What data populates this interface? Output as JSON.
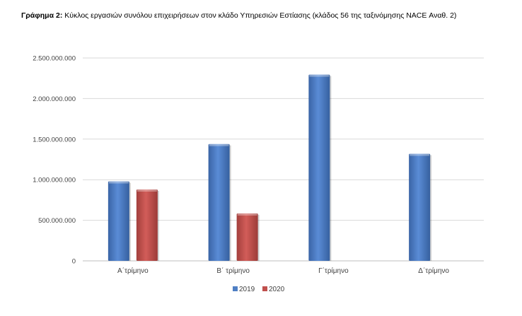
{
  "title_prefix": "Γράφημα 2:",
  "title_text": " Κύκλος εργασιών συνόλου επιχειρήσεων στον κλάδο Υπηρεσιών Εστίασης (κλάδος 56 της ταξινόμησης NACE Αναθ. 2)",
  "colors": {
    "2019": "#4f7fc4",
    "2020": "#c0504d"
  },
  "chart_data": {
    "type": "bar",
    "title": "Γράφημα 2: Κύκλος εργασιών συνόλου επιχειρήσεων στον κλάδο Υπηρεσιών Εστίασης (κλάδος 56 της ταξινόμησης NACE Αναθ. 2)",
    "categories": [
      "Α΄τρίμηνο",
      "Β΄ τρίμηνο",
      "Γ΄τρίμηνο",
      "Δ΄τρίμηνο"
    ],
    "series": [
      {
        "name": "2019",
        "values": [
          980000000,
          1440000000,
          2295000000,
          1320000000
        ]
      },
      {
        "name": "2020",
        "values": [
          880000000,
          585000000,
          null,
          null
        ]
      }
    ],
    "ylim": [
      0,
      2500000000
    ],
    "yticks": [
      0,
      500000000,
      1000000000,
      1500000000,
      2000000000,
      2500000000
    ],
    "ytick_labels": [
      "0",
      "500.000.000",
      "1.000.000.000",
      "1.500.000.000",
      "2.000.000.000",
      "2.500.000.000"
    ],
    "xlabel": "",
    "ylabel": "",
    "grid": true,
    "legend": "bottom-center"
  }
}
